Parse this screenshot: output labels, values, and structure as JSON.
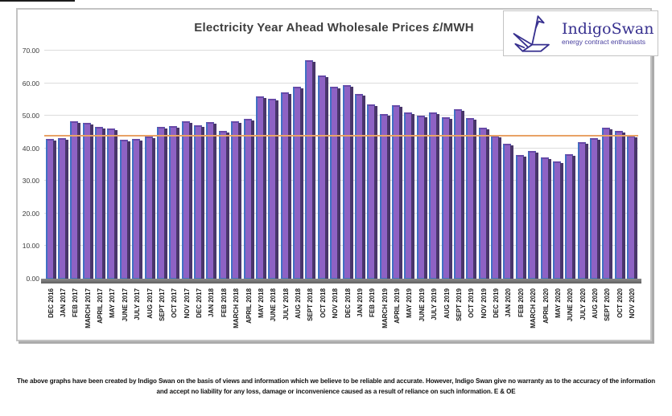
{
  "logo": {
    "brand": "IndigoSwan",
    "tagline": "energy contract enthusiasts",
    "brand_color": "#37308f"
  },
  "footer": {
    "line1": "The above graphs have been created by Indigo Swan on the basis of views and information which we believe to be reliable and accurate. However, Indigo Swan give no warranty as to the accuracy of the information",
    "line2": "and accept no liability for any loss, damage or inconvenience caused as a result of reliance on such information. E & OE"
  },
  "chart_data": {
    "type": "bar",
    "title": "Electricity Year Ahead Wholesale Prices £/MWH",
    "xlabel": "",
    "ylabel": "",
    "ylim": [
      0,
      70
    ],
    "grid": true,
    "legend": false,
    "yticks": [
      {
        "value": 0,
        "label": "0.00"
      },
      {
        "value": 10,
        "label": "10.00"
      },
      {
        "value": 20,
        "label": "20.00"
      },
      {
        "value": 30,
        "label": "30.00"
      },
      {
        "value": 40,
        "label": "40.00"
      },
      {
        "value": 50,
        "label": "50.00"
      },
      {
        "value": 60,
        "label": "60.00"
      },
      {
        "value": 70,
        "label": "70.00"
      }
    ],
    "reference_line": {
      "value": 44.0,
      "color": "#e8a266"
    },
    "categories": [
      "DEC 2016",
      "JAN 2017",
      "FEB 2017",
      "MARCH 2017",
      "APRIL 2017",
      "MAY 2017",
      "JUNE 2017",
      "JULY 2017",
      "AUG 2017",
      "SEPT 2017",
      "OCT 2017",
      "NOV 2017",
      "DEC 2017",
      "JAN 2018",
      "FEB 2018",
      "MARCH 2018",
      "APRIL 2018",
      "MAY 2018",
      "JUNE 2018",
      "JULY 2018",
      "AUG 2018",
      "SEPT 2018",
      "OCT 2018",
      "NOV 2018",
      "DEC 2018",
      "JAN 2019",
      "FEB 2019",
      "MARCH 2019",
      "APRIL 2019",
      "MAY 2019",
      "JUNE 2019",
      "JULY 2019",
      "AUG 2019",
      "SEPT 2019",
      "OCT 2019",
      "NOV 2019",
      "DEC 2019",
      "JAN 2020",
      "FEB 2020",
      "MARCH 2020",
      "APRIL 2020",
      "MAY 2020",
      "JUNE 2020",
      "JULY 2020",
      "AUG 2020",
      "SEPT 2020",
      "OCT 2020",
      "NOV 2020"
    ],
    "values": [
      43.0,
      43.1,
      48.3,
      47.8,
      46.6,
      46.0,
      42.7,
      43.0,
      43.6,
      46.6,
      46.9,
      48.3,
      47.1,
      48.1,
      45.4,
      48.4,
      49.0,
      55.9,
      55.3,
      57.2,
      59.0,
      67.0,
      62.4,
      58.9,
      59.5,
      56.7,
      53.5,
      50.5,
      53.2,
      51.1,
      50.1,
      51.0,
      49.6,
      52.0,
      49.3,
      46.3,
      43.9,
      41.4,
      37.9,
      39.1,
      37.2,
      35.9,
      38.3,
      42.0,
      43.2,
      46.4,
      45.4,
      43.9
    ],
    "colors": {
      "bar_face": "#8e62c4",
      "bar_side": "#49366b",
      "bar_edge": "#4170c4",
      "bar_cap": "#6a48a6",
      "grid": "#dcdcdc"
    }
  }
}
